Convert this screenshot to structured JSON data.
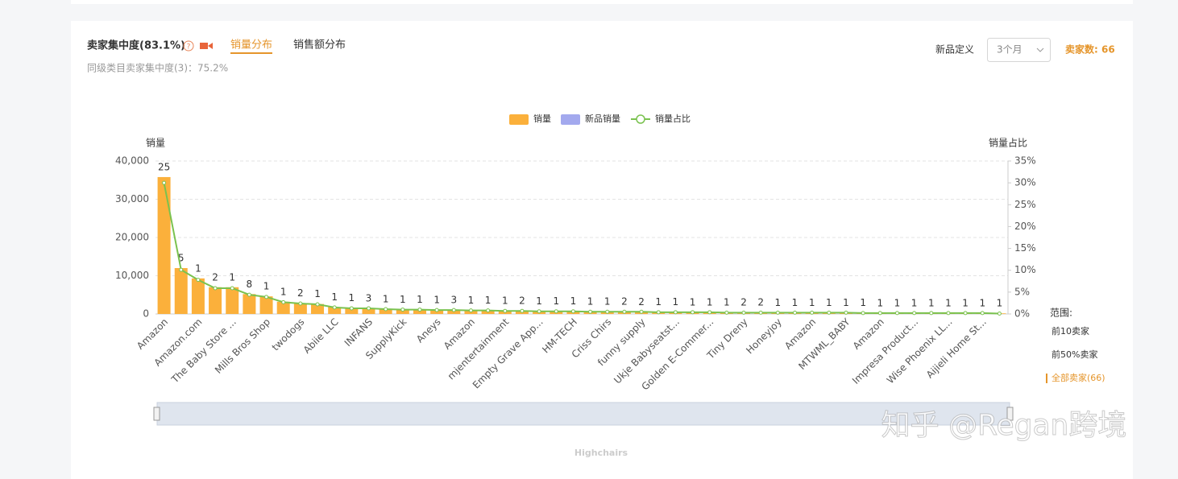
{
  "header": {
    "title": "卖家集中度(83.1%)",
    "tabs": [
      "销量分布",
      "销售额分布"
    ],
    "subtitle": "同级类目卖家集中度(3)：75.2%",
    "filter_label": "新品定义",
    "filter_value": "3个月",
    "seller_count": "卖家数: 66"
  },
  "range": {
    "title": "范围:",
    "options": [
      "前10卖家",
      "前50%卖家",
      "全部卖家(66)"
    ]
  },
  "navigator_label": "Highchairs",
  "watermark": "知乎 @Regan跨境",
  "chart_data": {
    "type": "bar",
    "y_label": "销量",
    "y2_label": "销量占比",
    "categories": [
      "Amazon",
      null,
      "Amazon.com",
      null,
      "The Baby Store ...",
      null,
      "Mills Bros Shop",
      null,
      "twodogs",
      null,
      "Abiie LLC",
      null,
      "INFANS",
      null,
      "SupplyKick",
      null,
      "Aneys",
      null,
      "Amazon",
      null,
      "mjentertainment",
      null,
      "Empty Grave App...",
      null,
      "HM-TECH",
      null,
      "Criss Chirs",
      null,
      "funny supply",
      null,
      "Ukje Babyseatst...",
      null,
      "Golden E-Commer...",
      null,
      "Tiny Dreny",
      null,
      "Honeyjoy",
      null,
      "Amazon",
      null,
      "MTWML_BABY",
      null,
      "Amazon",
      null,
      "Impresa Product...",
      null,
      "Wise Phoenix LL...",
      null,
      "Aijieli Home St...",
      null
    ],
    "series": [
      {
        "name": "销量",
        "color": "#fbb03b",
        "values": [
          35800,
          12000,
          9300,
          7000,
          7000,
          5200,
          4600,
          3200,
          2800,
          2600,
          1800,
          1600,
          1500,
          1300,
          1200,
          1150,
          1100,
          1050,
          1000,
          900,
          850,
          800,
          750,
          700,
          700,
          650,
          600,
          600,
          550,
          500,
          500,
          450,
          450,
          400,
          400,
          380,
          360,
          340,
          320,
          300,
          300,
          280,
          260,
          250,
          240,
          220,
          200,
          200,
          180,
          160
        ]
      },
      {
        "name": "新品销量",
        "color": "#a3a9ee",
        "values": [
          0,
          0,
          0,
          0,
          0,
          0,
          0,
          0,
          0,
          0,
          0,
          0,
          0,
          0,
          0,
          0,
          0,
          0,
          0,
          0,
          0,
          0,
          0,
          0,
          0,
          0,
          0,
          0,
          0,
          0,
          0,
          0,
          0,
          0,
          0,
          0,
          0,
          0,
          0,
          0,
          0,
          0,
          0,
          0,
          0,
          0,
          0,
          0,
          0,
          0
        ]
      },
      {
        "name": "销量占比",
        "color": "#7ac24f",
        "axis": "y2",
        "values": [
          30.0,
          10.1,
          7.8,
          5.9,
          5.9,
          4.4,
          3.9,
          2.7,
          2.4,
          2.2,
          1.5,
          1.3,
          1.3,
          1.1,
          1.0,
          1.0,
          0.9,
          0.9,
          0.8,
          0.8,
          0.7,
          0.7,
          0.6,
          0.6,
          0.6,
          0.5,
          0.5,
          0.5,
          0.5,
          0.4,
          0.4,
          0.4,
          0.4,
          0.3,
          0.3,
          0.3,
          0.3,
          0.3,
          0.3,
          0.3,
          0.3,
          0.2,
          0.2,
          0.2,
          0.2,
          0.2,
          0.2,
          0.2,
          0.2,
          0.1
        ]
      }
    ],
    "bar_labels": [
      25,
      5,
      1,
      2,
      1,
      8,
      1,
      1,
      2,
      1,
      1,
      1,
      3,
      1,
      1,
      1,
      1,
      3,
      1,
      1,
      1,
      2,
      1,
      1,
      1,
      1,
      1,
      2,
      2,
      1,
      1,
      1,
      1,
      1,
      2,
      2,
      1,
      1,
      1,
      1,
      1,
      1,
      1,
      1,
      1,
      1,
      1,
      1,
      1,
      1
    ],
    "ylim": [
      0,
      40000
    ],
    "yticks": [
      0,
      {
        "value": 10000,
        "label": "10,000"
      },
      {
        "value": 20000,
        "label": "20,000"
      },
      {
        "value": 30000,
        "label": "30,000"
      },
      {
        "value": 40000,
        "label": "40,000"
      }
    ],
    "y2lim": [
      0,
      35
    ],
    "y2ticks": [
      {
        "value": 0,
        "label": "0%"
      },
      {
        "value": 5,
        "label": "5%"
      },
      {
        "value": 10,
        "label": "10%"
      },
      {
        "value": 15,
        "label": "15%"
      },
      {
        "value": 20,
        "label": "20%"
      },
      {
        "value": 25,
        "label": "25%"
      },
      {
        "value": 30,
        "label": "30%"
      },
      {
        "value": 35,
        "label": "35%"
      }
    ],
    "grid": true
  }
}
